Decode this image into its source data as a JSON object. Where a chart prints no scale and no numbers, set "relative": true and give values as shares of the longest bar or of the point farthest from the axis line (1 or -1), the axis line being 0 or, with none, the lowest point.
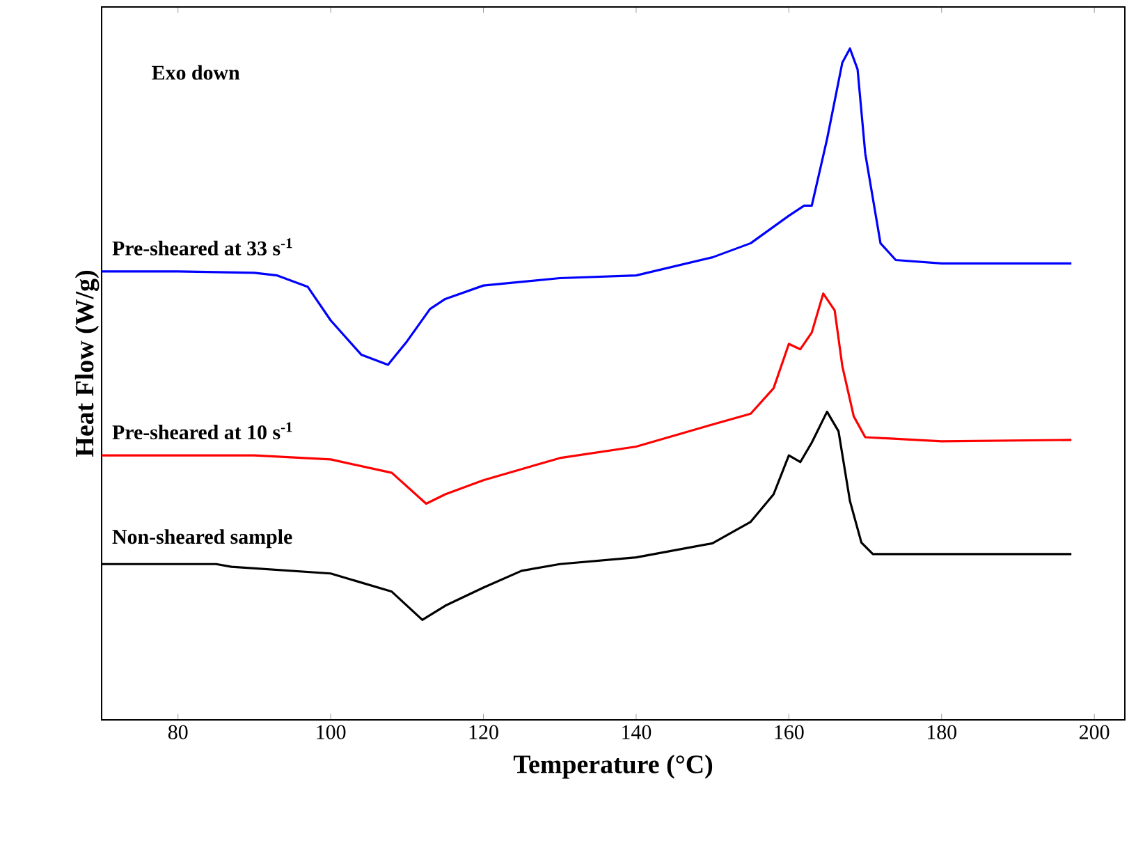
{
  "chart_data": {
    "type": "line",
    "xlabel": "Temperature (°C)",
    "ylabel": "Heat Flow (W/g)",
    "relative": true,
    "xlim": [
      70,
      204
    ],
    "xticks": [
      80,
      100,
      120,
      140,
      160,
      180,
      200
    ],
    "legend": false,
    "marker": "none",
    "line_style": "solid",
    "annotations": [
      "Exo down"
    ],
    "series": [
      {
        "name": "Pre-sheared at 33 s$^{-1}$",
        "color": "#0000ff",
        "x": [
          70,
          80,
          90,
          93,
          97,
          100,
          104,
          107.5,
          110,
          113,
          115,
          120,
          130,
          140,
          150,
          155,
          160,
          162,
          163,
          165,
          167,
          168,
          169,
          170,
          172,
          174,
          180,
          197
        ],
        "values": [
          0.668,
          0.668,
          0.666,
          0.662,
          0.645,
          0.595,
          0.544,
          0.529,
          0.564,
          0.612,
          0.627,
          0.647,
          0.658,
          0.662,
          0.689,
          0.71,
          0.751,
          0.766,
          0.766,
          0.865,
          0.979,
          1.0,
          0.969,
          0.844,
          0.71,
          0.685,
          0.68,
          0.68
        ]
      },
      {
        "name": "Pre-sheared at 10 s$^{-1}$",
        "color": "#ff0000",
        "x": [
          70,
          90,
          100,
          108,
          112.5,
          115,
          120,
          130,
          140,
          150,
          155,
          158,
          160,
          161.5,
          163,
          164.5,
          166,
          167,
          168.5,
          170,
          180,
          197
        ],
        "values": [
          0.394,
          0.394,
          0.388,
          0.368,
          0.322,
          0.336,
          0.357,
          0.39,
          0.407,
          0.44,
          0.456,
          0.494,
          0.56,
          0.552,
          0.577,
          0.635,
          0.61,
          0.527,
          0.452,
          0.421,
          0.415,
          0.417
        ]
      },
      {
        "name": "Non-sheared sample",
        "color": "#000000",
        "x": [
          70,
          85,
          87,
          100,
          108,
          112,
          115,
          120,
          125,
          130,
          140,
          150,
          155,
          158,
          160,
          161.5,
          163,
          165,
          166.5,
          168,
          169.5,
          171,
          180,
          197
        ],
        "values": [
          0.232,
          0.232,
          0.228,
          0.218,
          0.191,
          0.149,
          0.17,
          0.197,
          0.222,
          0.232,
          0.242,
          0.263,
          0.295,
          0.336,
          0.394,
          0.384,
          0.413,
          0.459,
          0.43,
          0.326,
          0.264,
          0.247,
          0.247,
          0.247
        ]
      }
    ]
  }
}
